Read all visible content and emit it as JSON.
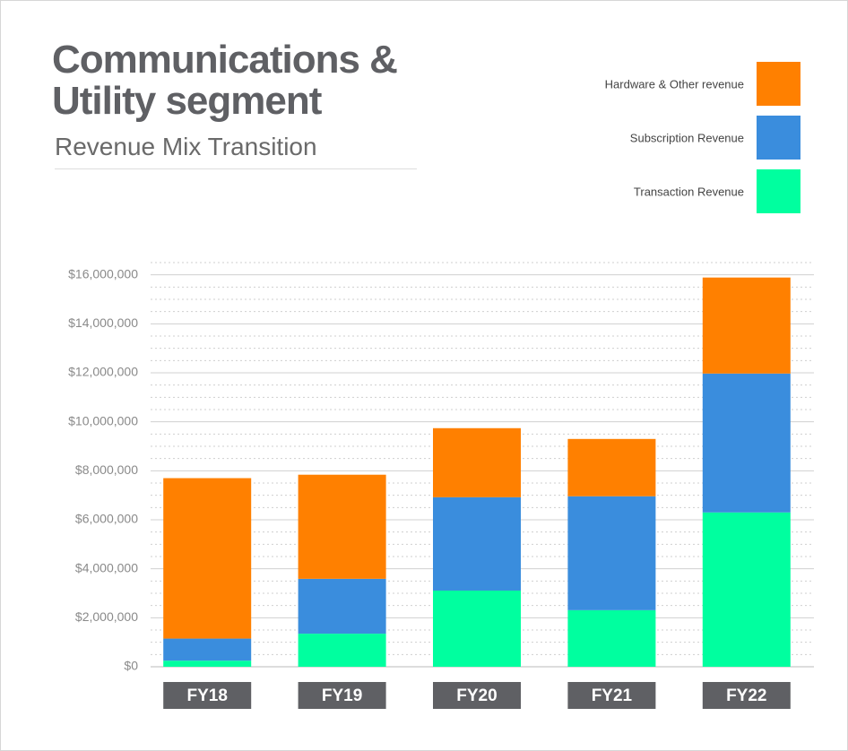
{
  "chart_data": {
    "type": "stacked-bar",
    "title": "Communications & Utility segment",
    "subtitle": "Revenue Mix Transition",
    "categories": [
      "FY18",
      "FY19",
      "FY20",
      "FY21",
      "FY22"
    ],
    "series": [
      {
        "name": "Transaction Revenue",
        "color": "#00ff9f",
        "values": [
          250000,
          1350000,
          3110000,
          2310000,
          6300000
        ]
      },
      {
        "name": "Subscription Revenue",
        "color": "#3a8ddd",
        "values": [
          900000,
          2240000,
          3810000,
          4650000,
          5670000
        ]
      },
      {
        "name": "Hardware & Other revenue",
        "color": "#ff8000",
        "values": [
          6550000,
          4250000,
          2820000,
          2340000,
          3920000
        ]
      }
    ],
    "ylim": [
      0,
      16500000
    ],
    "yticks": [
      {
        "value": 0,
        "label": "$0"
      },
      {
        "value": 2000000,
        "label": "$2,000,000"
      },
      {
        "value": 4000000,
        "label": "$4,000,000"
      },
      {
        "value": 6000000,
        "label": "$6,000,000"
      },
      {
        "value": 8000000,
        "label": "$8,000,000"
      },
      {
        "value": 10000000,
        "label": "$10,000,000"
      },
      {
        "value": 12000000,
        "label": "$12,000,000"
      },
      {
        "value": 14000000,
        "label": "$14,000,000"
      },
      {
        "value": 16000000,
        "label": "$16,000,000"
      }
    ],
    "grid": true,
    "legend": "top-right"
  }
}
